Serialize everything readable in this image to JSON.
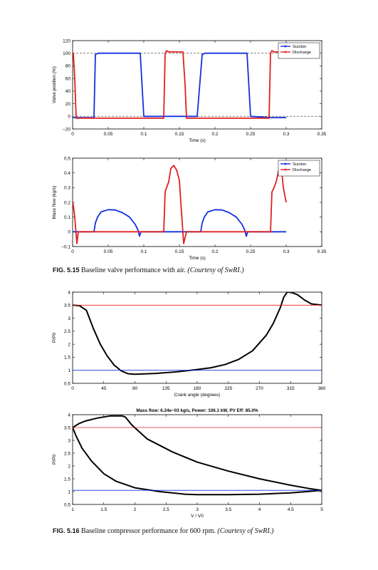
{
  "figures": {
    "fig515": {
      "label": "FIG. 5.15",
      "text": "Baseline valve performance with air.",
      "credit": "(Courtesy of SwRI.)"
    },
    "fig516": {
      "label": "FIG. 5.16",
      "text": "Baseline compressor performance for 600 rpm.",
      "credit": "(Courtesy of SwRI.)"
    }
  },
  "chart_data": [
    {
      "type": "line",
      "title": "",
      "xlabel": "Time (s)",
      "ylabel": "Valve position (%)",
      "xlim": [
        0,
        0.35
      ],
      "ylim": [
        -20,
        120
      ],
      "xticks": [
        "0",
        "0.05",
        "0.1",
        "0.15",
        "0.2",
        "0.25",
        "0.3",
        "0.35"
      ],
      "yticks": [
        "−20",
        "0",
        "20",
        "40",
        "60",
        "80",
        "100",
        "120"
      ],
      "grid": false,
      "legend_position": "top-right",
      "reference_lines": [
        {
          "y": 100,
          "style": "dashed",
          "color": "#555555"
        },
        {
          "y": 0,
          "style": "dashed",
          "color": "#555555"
        }
      ],
      "series": [
        {
          "name": "Suction",
          "color": "#1030e0",
          "x": [
            0,
            0.004,
            0.02,
            0.03,
            0.032,
            0.036,
            0.095,
            0.097,
            0.1,
            0.13,
            0.15,
            0.175,
            0.182,
            0.186,
            0.245,
            0.247,
            0.25,
            0.28,
            0.3
          ],
          "y": [
            -2,
            -2,
            -2,
            -2,
            98,
            100,
            100,
            60,
            0,
            0,
            0,
            0,
            98,
            100,
            100,
            60,
            0,
            -2,
            -2
          ]
        },
        {
          "name": "Discharge",
          "color": "#e02020",
          "x": [
            0,
            0.001,
            0.003,
            0.005,
            0.01,
            0.05,
            0.1,
            0.128,
            0.13,
            0.132,
            0.135,
            0.15,
            0.155,
            0.158,
            0.16,
            0.2,
            0.25,
            0.276,
            0.278,
            0.28,
            0.283,
            0.3
          ],
          "y": [
            100,
            100,
            60,
            -3,
            -3,
            -3,
            -3,
            -3,
            100,
            104,
            102,
            102,
            102,
            50,
            -3,
            -3,
            -3,
            -3,
            100,
            104,
            102,
            102
          ]
        }
      ]
    },
    {
      "type": "line",
      "title": "",
      "xlabel": "Time (s)",
      "ylabel": "Mass flow (kg/s)",
      "xlim": [
        0,
        0.35
      ],
      "ylim": [
        -0.1,
        0.5
      ],
      "xticks": [
        "0",
        "0.05",
        "0.1",
        "0.15",
        "0.2",
        "0.25",
        "0.3",
        "0.35"
      ],
      "yticks": [
        "−0.1",
        "0",
        "0.1",
        "0.2",
        "0.3",
        "0.4",
        "0.5"
      ],
      "grid": false,
      "legend_position": "top-right",
      "series": [
        {
          "name": "Suction",
          "color": "#1030e0",
          "x": [
            0,
            0.03,
            0.032,
            0.035,
            0.04,
            0.05,
            0.06,
            0.07,
            0.08,
            0.088,
            0.092,
            0.094,
            0.096,
            0.1,
            0.15,
            0.18,
            0.182,
            0.185,
            0.19,
            0.2,
            0.21,
            0.22,
            0.23,
            0.238,
            0.242,
            0.244,
            0.246,
            0.25,
            0.3
          ],
          "y": [
            0,
            0,
            0.06,
            0.1,
            0.135,
            0.15,
            0.148,
            0.13,
            0.1,
            0.05,
            0.01,
            -0.03,
            0,
            0,
            0,
            0,
            0.06,
            0.1,
            0.135,
            0.15,
            0.148,
            0.13,
            0.1,
            0.05,
            0.01,
            -0.03,
            0,
            0,
            0
          ]
        },
        {
          "name": "Discharge",
          "color": "#e02020",
          "x": [
            0,
            0.001,
            0.003,
            0.006,
            0.008,
            0.01,
            0.05,
            0.1,
            0.128,
            0.13,
            0.132,
            0.135,
            0.138,
            0.142,
            0.146,
            0.15,
            0.152,
            0.154,
            0.156,
            0.16,
            0.2,
            0.25,
            0.278,
            0.28,
            0.283,
            0.286,
            0.29,
            0.293,
            0.296,
            0.3
          ],
          "y": [
            0.2,
            0.18,
            0.1,
            -0.08,
            0,
            0,
            0,
            0,
            0,
            0.27,
            0.3,
            0.34,
            0.43,
            0.45,
            0.42,
            0.35,
            0.2,
            0.06,
            -0.08,
            0,
            0,
            0,
            0,
            0.27,
            0.3,
            0.34,
            0.43,
            0.45,
            0.3,
            0.2
          ]
        }
      ]
    },
    {
      "type": "line",
      "title": "",
      "xlabel": "Crank angle (degrees)",
      "ylabel": "P/P0",
      "xlim": [
        0,
        360
      ],
      "ylim": [
        0.5,
        4
      ],
      "xticks": [
        "0",
        "45",
        "90",
        "135",
        "180",
        "225",
        "270",
        "315",
        "360"
      ],
      "yticks": [
        "0.5",
        "1",
        "1.5",
        "2",
        "2.5",
        "3",
        "3.5",
        "4"
      ],
      "grid": false,
      "legend_position": "",
      "series": [
        {
          "color": "#000000",
          "x": [
            0,
            10,
            20,
            30,
            40,
            50,
            60,
            70,
            80,
            90,
            120,
            150,
            180,
            200,
            220,
            240,
            260,
            280,
            290,
            300,
            305,
            310,
            315,
            325,
            335,
            345,
            360
          ],
          "y": [
            3.5,
            3.48,
            3.3,
            2.6,
            2.0,
            1.55,
            1.2,
            0.98,
            0.87,
            0.85,
            0.88,
            0.94,
            1.03,
            1.1,
            1.22,
            1.42,
            1.75,
            2.35,
            2.8,
            3.4,
            3.8,
            4.0,
            4.0,
            3.9,
            3.7,
            3.55,
            3.5
          ]
        },
        {
          "color": "#e02020",
          "x": [
            0,
            360
          ],
          "y": [
            3.5,
            3.5
          ]
        },
        {
          "color": "#1030e0",
          "x": [
            0,
            360
          ],
          "y": [
            1.0,
            1.0
          ]
        }
      ]
    },
    {
      "type": "line",
      "title": "Mass flow: 6.24e−03 kg/s, Power: 106.1 kW, PV Eff: 85.0%",
      "xlabel": "V / V0",
      "ylabel": "P/P0",
      "xlim": [
        1,
        5
      ],
      "ylim": [
        0.5,
        4
      ],
      "xticks": [
        "1",
        "1.5",
        "2",
        "2.5",
        "3",
        "3.5",
        "4",
        "4.5",
        "5"
      ],
      "yticks": [
        "0.5",
        "1",
        "1.5",
        "2",
        "2.5",
        "3",
        "3.5",
        "4"
      ],
      "grid": false,
      "legend_position": "",
      "series": [
        {
          "color": "#000000",
          "x": [
            1.0,
            1.1,
            1.2,
            1.4,
            1.6,
            1.8,
            1.85,
            1.95,
            2.2,
            2.6,
            3.0,
            3.5,
            4.0,
            4.5,
            4.8,
            5.0,
            4.5,
            4.0,
            3.5,
            3.0,
            2.8,
            2.4,
            2.0,
            1.7,
            1.5,
            1.3,
            1.15,
            1.05,
            1.0
          ],
          "y": [
            3.5,
            3.65,
            3.75,
            3.87,
            3.95,
            3.95,
            3.9,
            3.6,
            3.05,
            2.55,
            2.15,
            1.8,
            1.5,
            1.25,
            1.12,
            1.05,
            0.95,
            0.9,
            0.88,
            0.88,
            0.9,
            1.0,
            1.15,
            1.4,
            1.7,
            2.2,
            2.7,
            3.2,
            3.5
          ]
        },
        {
          "color": "#e02020",
          "x": [
            1,
            5
          ],
          "y": [
            3.5,
            3.5
          ]
        },
        {
          "color": "#1030e0",
          "x": [
            1,
            5
          ],
          "y": [
            1.05,
            1.05
          ]
        }
      ]
    }
  ]
}
